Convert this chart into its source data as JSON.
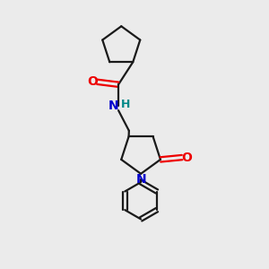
{
  "bg_color": "#ebebeb",
  "bond_color": "#1a1a1a",
  "O_color": "#ee0000",
  "N_color": "#0000cc",
  "H_color": "#008888",
  "line_width": 1.6,
  "font_size_atom": 10,
  "fig_size": [
    3.0,
    3.0
  ],
  "dpi": 100,
  "xlim": [
    0,
    10
  ],
  "ylim": [
    0,
    10
  ]
}
